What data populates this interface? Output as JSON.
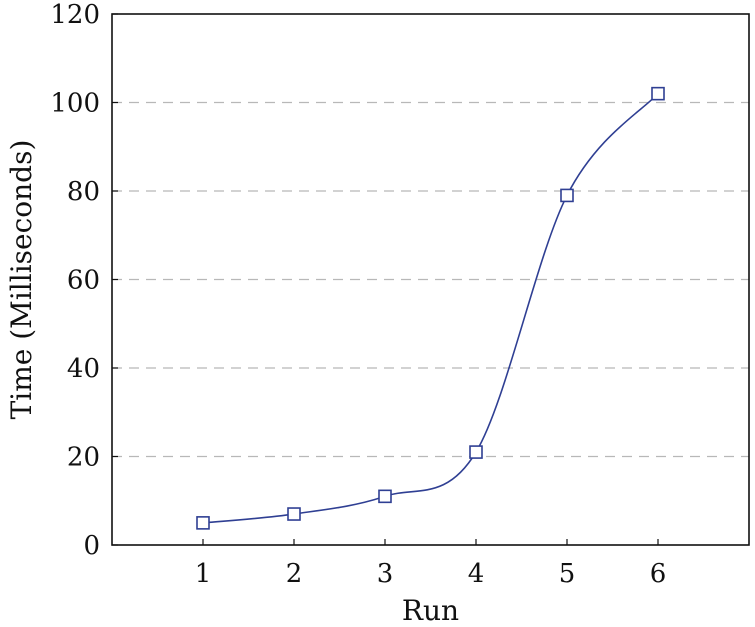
{
  "chart_data": {
    "type": "line",
    "title": "",
    "xlabel": "Run",
    "ylabel": "Time (Milliseconds)",
    "xlim": [
      0,
      7
    ],
    "ylim": [
      0,
      120
    ],
    "x_ticks": [
      "1",
      "2",
      "3",
      "4",
      "5",
      "6"
    ],
    "y_ticks": [
      "0",
      "20",
      "40",
      "60",
      "80",
      "100",
      "120"
    ],
    "grid": "horizontal dashed",
    "legend": "none",
    "series": [
      {
        "color": "#2f3f93",
        "marker": "square-open",
        "x": [
          1,
          2,
          3,
          4,
          5,
          6
        ],
        "y": [
          5,
          7,
          11,
          21,
          79,
          102
        ]
      }
    ]
  }
}
